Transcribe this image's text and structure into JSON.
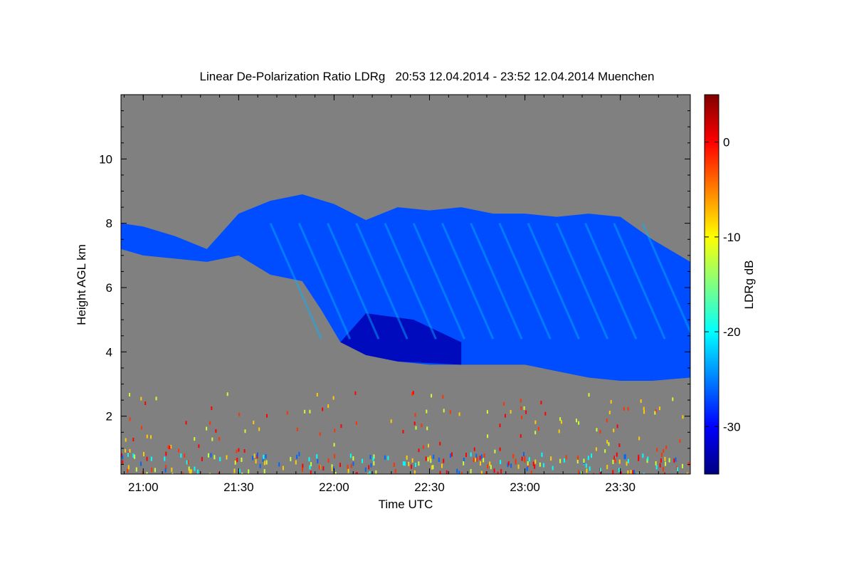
{
  "chart_data": {
    "type": "heatmap",
    "title": "Linear De-Polarization Ratio LDRg",
    "subtitle": "20:53 12.04.2014 - 23:52 12.04.2014 Muenchen",
    "xlabel": "Time UTC",
    "ylabel": "Height AGL km",
    "x_ticks": [
      "21:00",
      "21:30",
      "22:00",
      "22:30",
      "23:00",
      "23:30"
    ],
    "x_tick_minutes": [
      1260,
      1290,
      1320,
      1350,
      1380,
      1410
    ],
    "xlim_minutes": [
      1253,
      1432
    ],
    "y_ticks": [
      2,
      4,
      6,
      8,
      10
    ],
    "ylim": [
      0.2,
      12
    ],
    "colorbar": {
      "label": "LDRg dB",
      "ticks": [
        0,
        -10,
        -20,
        -30
      ],
      "range": [
        -35,
        5
      ],
      "colors": [
        "#000080",
        "#0000ff",
        "#0080ff",
        "#00ffff",
        "#80ff80",
        "#ffff00",
        "#ff8000",
        "#ff0000",
        "#800000"
      ]
    },
    "no_data_color": "#808080",
    "cloud_layer": {
      "typical_ldr_db": -27,
      "core_ldr_db": -33,
      "streak_ldr_db": -23,
      "top_km": [
        [
          1253,
          8.0
        ],
        [
          1260,
          7.9
        ],
        [
          1270,
          7.6
        ],
        [
          1280,
          7.2
        ],
        [
          1290,
          8.3
        ],
        [
          1300,
          8.7
        ],
        [
          1310,
          8.9
        ],
        [
          1320,
          8.6
        ],
        [
          1330,
          8.1
        ],
        [
          1340,
          8.5
        ],
        [
          1350,
          8.4
        ],
        [
          1360,
          8.5
        ],
        [
          1370,
          8.3
        ],
        [
          1380,
          8.3
        ],
        [
          1390,
          8.2
        ],
        [
          1400,
          8.3
        ],
        [
          1410,
          8.2
        ],
        [
          1420,
          7.5
        ],
        [
          1432,
          6.8
        ]
      ],
      "base_km": [
        [
          1253,
          7.2
        ],
        [
          1260,
          7.0
        ],
        [
          1270,
          6.9
        ],
        [
          1280,
          6.8
        ],
        [
          1290,
          7.0
        ],
        [
          1300,
          6.4
        ],
        [
          1310,
          6.2
        ],
        [
          1316,
          5.3
        ],
        [
          1322,
          4.3
        ],
        [
          1330,
          3.9
        ],
        [
          1340,
          3.7
        ],
        [
          1350,
          3.6
        ],
        [
          1360,
          3.6
        ],
        [
          1370,
          3.6
        ],
        [
          1380,
          3.6
        ],
        [
          1390,
          3.4
        ],
        [
          1400,
          3.2
        ],
        [
          1410,
          3.1
        ],
        [
          1420,
          3.1
        ],
        [
          1432,
          3.2
        ]
      ]
    }
  }
}
